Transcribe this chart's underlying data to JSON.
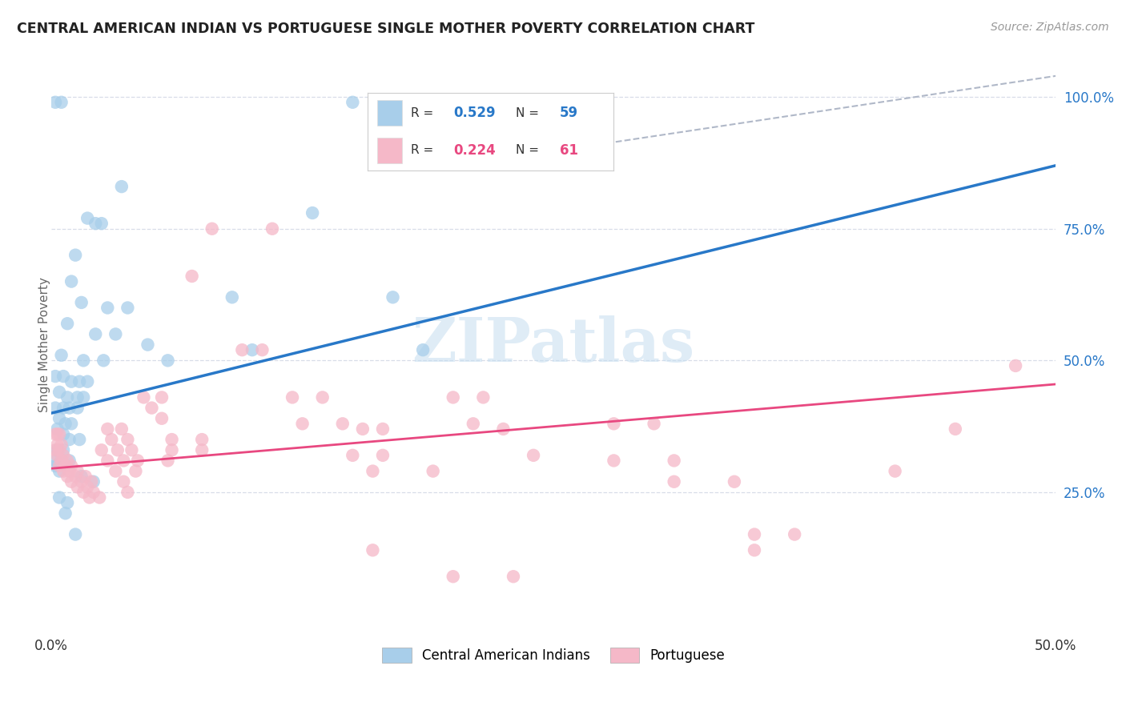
{
  "title": "CENTRAL AMERICAN INDIAN VS PORTUGUESE SINGLE MOTHER POVERTY CORRELATION CHART",
  "source": "Source: ZipAtlas.com",
  "ylabel": "Single Mother Poverty",
  "watermark": "ZIPatlas",
  "xlim": [
    0.0,
    0.5
  ],
  "ylim": [
    -0.02,
    1.08
  ],
  "xtick_vals": [
    0.0,
    0.5
  ],
  "xtick_labels": [
    "0.0%",
    "50.0%"
  ],
  "ytick_positions": [
    0.25,
    0.5,
    0.75,
    1.0
  ],
  "ytick_labels": [
    "25.0%",
    "50.0%",
    "75.0%",
    "100.0%"
  ],
  "blue_label": "Central American Indians",
  "pink_label": "Portuguese",
  "blue_color": "#a8ceea",
  "pink_color": "#f5b8c8",
  "blue_line_color": "#2878c8",
  "pink_line_color": "#e84880",
  "grid_color": "#d8dde8",
  "blue_scatter": [
    [
      0.002,
      0.99
    ],
    [
      0.005,
      0.99
    ],
    [
      0.15,
      0.99
    ],
    [
      0.165,
      0.99
    ],
    [
      0.035,
      0.83
    ],
    [
      0.018,
      0.77
    ],
    [
      0.022,
      0.76
    ],
    [
      0.025,
      0.76
    ],
    [
      0.012,
      0.7
    ],
    [
      0.01,
      0.65
    ],
    [
      0.015,
      0.61
    ],
    [
      0.028,
      0.6
    ],
    [
      0.038,
      0.6
    ],
    [
      0.008,
      0.57
    ],
    [
      0.022,
      0.55
    ],
    [
      0.032,
      0.55
    ],
    [
      0.048,
      0.53
    ],
    [
      0.005,
      0.51
    ],
    [
      0.016,
      0.5
    ],
    [
      0.026,
      0.5
    ],
    [
      0.058,
      0.5
    ],
    [
      0.002,
      0.47
    ],
    [
      0.006,
      0.47
    ],
    [
      0.01,
      0.46
    ],
    [
      0.014,
      0.46
    ],
    [
      0.018,
      0.46
    ],
    [
      0.004,
      0.44
    ],
    [
      0.008,
      0.43
    ],
    [
      0.013,
      0.43
    ],
    [
      0.016,
      0.43
    ],
    [
      0.002,
      0.41
    ],
    [
      0.006,
      0.41
    ],
    [
      0.009,
      0.41
    ],
    [
      0.013,
      0.41
    ],
    [
      0.004,
      0.39
    ],
    [
      0.007,
      0.38
    ],
    [
      0.01,
      0.38
    ],
    [
      0.003,
      0.37
    ],
    [
      0.006,
      0.36
    ],
    [
      0.009,
      0.35
    ],
    [
      0.014,
      0.35
    ],
    [
      0.003,
      0.33
    ],
    [
      0.006,
      0.33
    ],
    [
      0.002,
      0.31
    ],
    [
      0.005,
      0.31
    ],
    [
      0.009,
      0.31
    ],
    [
      0.002,
      0.3
    ],
    [
      0.004,
      0.29
    ],
    [
      0.015,
      0.28
    ],
    [
      0.021,
      0.27
    ],
    [
      0.004,
      0.24
    ],
    [
      0.008,
      0.23
    ],
    [
      0.007,
      0.21
    ],
    [
      0.012,
      0.17
    ],
    [
      0.13,
      0.78
    ],
    [
      0.09,
      0.62
    ],
    [
      0.17,
      0.62
    ],
    [
      0.1,
      0.52
    ],
    [
      0.185,
      0.52
    ]
  ],
  "pink_scatter": [
    [
      0.002,
      0.36
    ],
    [
      0.003,
      0.36
    ],
    [
      0.004,
      0.36
    ],
    [
      0.003,
      0.34
    ],
    [
      0.005,
      0.34
    ],
    [
      0.002,
      0.33
    ],
    [
      0.004,
      0.33
    ],
    [
      0.003,
      0.32
    ],
    [
      0.006,
      0.32
    ],
    [
      0.005,
      0.31
    ],
    [
      0.008,
      0.31
    ],
    [
      0.004,
      0.3
    ],
    [
      0.007,
      0.3
    ],
    [
      0.01,
      0.3
    ],
    [
      0.006,
      0.29
    ],
    [
      0.009,
      0.29
    ],
    [
      0.013,
      0.29
    ],
    [
      0.008,
      0.28
    ],
    [
      0.012,
      0.28
    ],
    [
      0.017,
      0.28
    ],
    [
      0.01,
      0.27
    ],
    [
      0.015,
      0.27
    ],
    [
      0.02,
      0.27
    ],
    [
      0.013,
      0.26
    ],
    [
      0.018,
      0.26
    ],
    [
      0.016,
      0.25
    ],
    [
      0.021,
      0.25
    ],
    [
      0.019,
      0.24
    ],
    [
      0.024,
      0.24
    ],
    [
      0.028,
      0.37
    ],
    [
      0.035,
      0.37
    ],
    [
      0.03,
      0.35
    ],
    [
      0.038,
      0.35
    ],
    [
      0.025,
      0.33
    ],
    [
      0.033,
      0.33
    ],
    [
      0.04,
      0.33
    ],
    [
      0.028,
      0.31
    ],
    [
      0.036,
      0.31
    ],
    [
      0.043,
      0.31
    ],
    [
      0.032,
      0.29
    ],
    [
      0.042,
      0.29
    ],
    [
      0.036,
      0.27
    ],
    [
      0.038,
      0.25
    ],
    [
      0.06,
      0.35
    ],
    [
      0.075,
      0.35
    ],
    [
      0.06,
      0.33
    ],
    [
      0.075,
      0.33
    ],
    [
      0.058,
      0.31
    ],
    [
      0.046,
      0.43
    ],
    [
      0.055,
      0.43
    ],
    [
      0.05,
      0.41
    ],
    [
      0.055,
      0.39
    ],
    [
      0.08,
      0.75
    ],
    [
      0.11,
      0.75
    ],
    [
      0.07,
      0.66
    ],
    [
      0.095,
      0.52
    ],
    [
      0.105,
      0.52
    ],
    [
      0.12,
      0.43
    ],
    [
      0.135,
      0.43
    ],
    [
      0.125,
      0.38
    ],
    [
      0.145,
      0.38
    ],
    [
      0.155,
      0.37
    ],
    [
      0.165,
      0.37
    ],
    [
      0.15,
      0.32
    ],
    [
      0.165,
      0.32
    ],
    [
      0.16,
      0.29
    ],
    [
      0.2,
      0.43
    ],
    [
      0.215,
      0.43
    ],
    [
      0.21,
      0.38
    ],
    [
      0.225,
      0.37
    ],
    [
      0.19,
      0.29
    ],
    [
      0.24,
      0.32
    ],
    [
      0.28,
      0.38
    ],
    [
      0.3,
      0.38
    ],
    [
      0.28,
      0.31
    ],
    [
      0.31,
      0.31
    ],
    [
      0.31,
      0.27
    ],
    [
      0.34,
      0.27
    ],
    [
      0.35,
      0.17
    ],
    [
      0.37,
      0.17
    ],
    [
      0.42,
      0.29
    ],
    [
      0.45,
      0.37
    ],
    [
      0.48,
      0.49
    ],
    [
      0.2,
      0.09
    ],
    [
      0.23,
      0.09
    ],
    [
      0.16,
      0.14
    ],
    [
      0.35,
      0.14
    ]
  ]
}
